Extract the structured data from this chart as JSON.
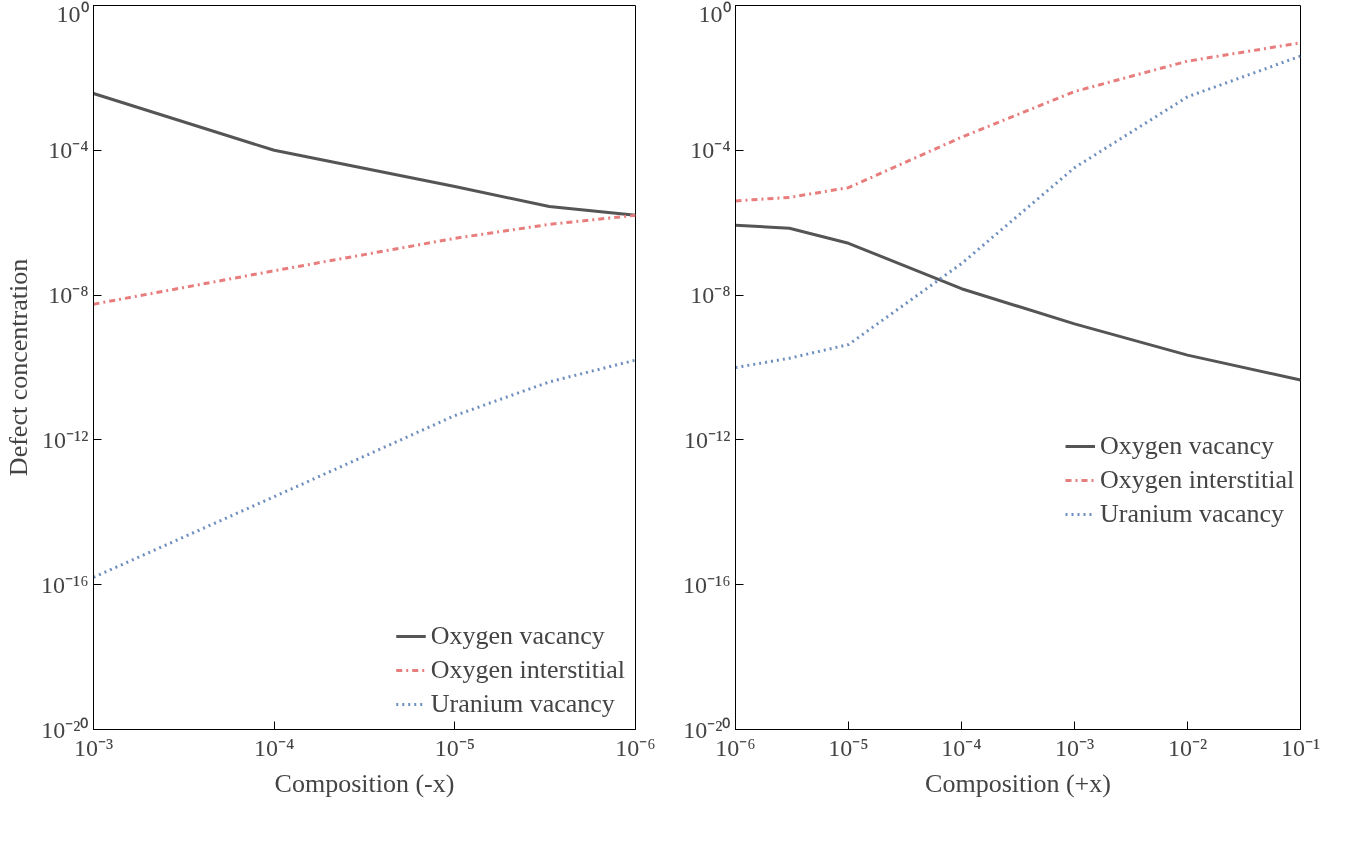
{
  "chart_data": [
    {
      "type": "line",
      "xlabel": "Composition (-x)",
      "ylabel": "Defect concentration",
      "log": "xy",
      "xlim": [
        0.001,
        1e-06
      ],
      "ylim": [
        1e-20,
        1
      ],
      "xticks": [
        {
          "value": 0.001,
          "label": "10⁻³"
        },
        {
          "value": 0.0001,
          "label": "10⁻⁴"
        },
        {
          "value": 1e-05,
          "label": "10⁻⁵"
        },
        {
          "value": 1e-06,
          "label": "10⁻⁶"
        }
      ],
      "yticks": [
        {
          "value": 1,
          "label": "10⁰"
        },
        {
          "value": 0.0001,
          "label": "10⁻⁴"
        },
        {
          "value": 1e-08,
          "label": "10⁻⁸"
        },
        {
          "value": 1e-12,
          "label": "10⁻¹²"
        },
        {
          "value": 1e-16,
          "label": "10⁻¹⁶"
        },
        {
          "value": 1e-20,
          "label": "10⁻²⁰"
        }
      ],
      "x": [
        0.001,
        0.0001,
        1e-05,
        3e-06,
        1e-06
      ],
      "legend": "bottom right",
      "grid": false,
      "series": [
        {
          "name": "Oxygen vacancy",
          "color": "#555555",
          "line_style": "solid",
          "values": [
            0.0037,
            0.0001,
            1e-05,
            2.8e-06,
            1.6e-06
          ]
        },
        {
          "name": "Oxygen interstitial",
          "color": "#e87d7d",
          "line_style": "dashdot",
          "values": [
            5.6e-09,
            4.7e-08,
            3.7e-07,
            9e-07,
            1.6e-06
          ]
        },
        {
          "name": "Uranium vacancy",
          "color": "#6f8fbf",
          "line_style": "dotted",
          "values": [
            1.6e-16,
            2.7e-14,
            4.7e-12,
            4e-11,
            1.6e-10
          ]
        }
      ]
    },
    {
      "type": "line",
      "xlabel": "Composition (+x)",
      "log": "xy",
      "xlim": [
        1e-06,
        0.1
      ],
      "ylim": [
        1e-20,
        1
      ],
      "xticks": [
        {
          "value": 1e-06,
          "label": "10⁻⁶"
        },
        {
          "value": 1e-05,
          "label": "10⁻⁵"
        },
        {
          "value": 0.0001,
          "label": "10⁻⁴"
        },
        {
          "value": 0.001,
          "label": "10⁻³"
        },
        {
          "value": 0.01,
          "label": "10⁻²"
        },
        {
          "value": 0.1,
          "label": "10⁻¹"
        }
      ],
      "yticks": [
        {
          "value": 1,
          "label": "10⁰"
        },
        {
          "value": 0.0001,
          "label": "10⁻⁴"
        },
        {
          "value": 1e-08,
          "label": "10⁻⁸"
        },
        {
          "value": 1e-12,
          "label": "10⁻¹²"
        },
        {
          "value": 1e-16,
          "label": "10⁻¹⁶"
        },
        {
          "value": 1e-20,
          "label": "10⁻²⁰"
        }
      ],
      "x": [
        1e-06,
        3e-06,
        1e-05,
        0.0001,
        0.001,
        0.01,
        0.1
      ],
      "legend": "right",
      "grid": false,
      "series": [
        {
          "name": "Oxygen vacancy",
          "color": "#555555",
          "line_style": "solid",
          "values": [
            8.5e-07,
            7e-07,
            2.7e-07,
            1.5e-08,
            1.6e-09,
            2.2e-10,
            4.5e-11
          ]
        },
        {
          "name": "Oxygen interstitial",
          "color": "#e87d7d",
          "line_style": "dashdot",
          "values": [
            4e-06,
            5e-06,
            9.3e-06,
            0.00023,
            0.0042,
            0.029,
            0.093
          ]
        },
        {
          "name": "Uranium vacancy",
          "color": "#6f8fbf",
          "line_style": "dotted",
          "values": [
            1e-10,
            1.8e-10,
            4.3e-10,
            7.4e-08,
            3.3e-05,
            0.003,
            0.04
          ]
        }
      ]
    }
  ]
}
